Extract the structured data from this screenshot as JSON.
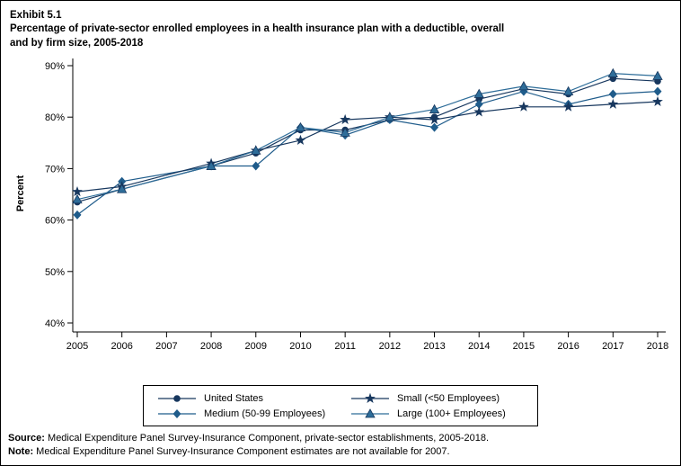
{
  "header": {
    "exhibit": "Exhibit 5.1",
    "title": "Percentage of private-sector enrolled employees in a health insurance plan with a deductible, overall and by firm size, 2005-2018"
  },
  "chart_data": {
    "type": "line",
    "title": "Percentage of private-sector enrolled employees in a health insurance plan with a deductible, overall and by firm size, 2005-2018",
    "ylabel": "Percent",
    "xlabel": "",
    "ylim": [
      40,
      90
    ],
    "yticks": [
      40,
      50,
      60,
      70,
      80,
      90
    ],
    "ytick_suffix": "%",
    "xticks": [
      2005,
      2006,
      2007,
      2008,
      2009,
      2010,
      2011,
      2012,
      2013,
      2014,
      2015,
      2016,
      2017,
      2018
    ],
    "years": [
      2005,
      2006,
      2008,
      2009,
      2010,
      2011,
      2012,
      2013,
      2014,
      2015,
      2016,
      2017,
      2018
    ],
    "missing_year_note": "2007 estimates not available",
    "grid": "off",
    "legend_position": "bottom",
    "series": [
      {
        "name": "United States",
        "marker": "circle",
        "color": "#17375e",
        "values": [
          63.5,
          66,
          70.5,
          73,
          77.5,
          77.5,
          79.5,
          80,
          83.5,
          85.5,
          84.5,
          87.5,
          87
        ]
      },
      {
        "name": "Medium (50-99 Employees)",
        "marker": "diamond",
        "color": "#1f5c8b",
        "values": [
          61,
          67.5,
          70.5,
          70.5,
          78,
          76.5,
          79.5,
          78,
          82.5,
          85,
          82.5,
          84.5,
          85
        ]
      },
      {
        "name": "Small (<50 Employees)",
        "marker": "star",
        "color": "#17375e",
        "values": [
          65.5,
          66.5,
          71,
          73.5,
          75.5,
          79.5,
          80,
          79.5,
          81,
          82,
          82,
          82.5,
          83
        ]
      },
      {
        "name": "Large (100+ Employees)",
        "marker": "triangle",
        "color": "#2e6d99",
        "values": [
          64,
          66,
          70.5,
          73.5,
          78,
          77,
          80,
          81.5,
          84.5,
          86,
          85,
          88.5,
          88
        ]
      }
    ]
  },
  "footer": {
    "source_label": "Source:",
    "source_text": " Medical Expenditure Panel Survey-Insurance Component, private-sector establishments, 2005-2018.",
    "note_label": "Note:",
    "note_text": " Medical Expenditure Panel Survey-Insurance Component estimates are not available for 2007."
  }
}
